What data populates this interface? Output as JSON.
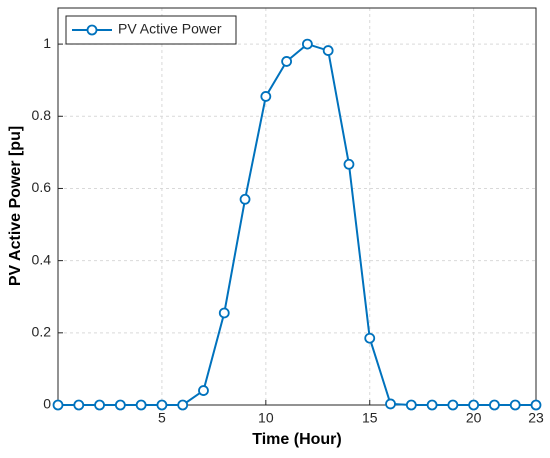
{
  "chart_data": {
    "type": "line",
    "x_label": "Time (Hour)",
    "y_label": "PV Active Power [pu]",
    "x": [
      0,
      1,
      2,
      3,
      4,
      5,
      6,
      7,
      8,
      9,
      10,
      11,
      12,
      13,
      14,
      15,
      16,
      17,
      18,
      19,
      20,
      21,
      22,
      23
    ],
    "series": [
      {
        "name": "PV Active Power",
        "color": "#0072bd",
        "values": [
          0,
          0,
          0,
          0,
          0,
          0,
          0,
          0.04,
          0.255,
          0.57,
          0.855,
          0.952,
          1.0,
          0.982,
          0.667,
          0.185,
          0.003,
          0,
          0,
          0,
          0,
          0,
          0,
          0
        ]
      }
    ],
    "xlim": [
      0,
      23
    ],
    "ylim": [
      0,
      1.1
    ],
    "xticks": [
      5,
      10,
      15,
      20,
      23
    ],
    "yticks": [
      0,
      0.2,
      0.4,
      0.6,
      0.8,
      1
    ],
    "grid": true,
    "legend": "upper-left"
  }
}
